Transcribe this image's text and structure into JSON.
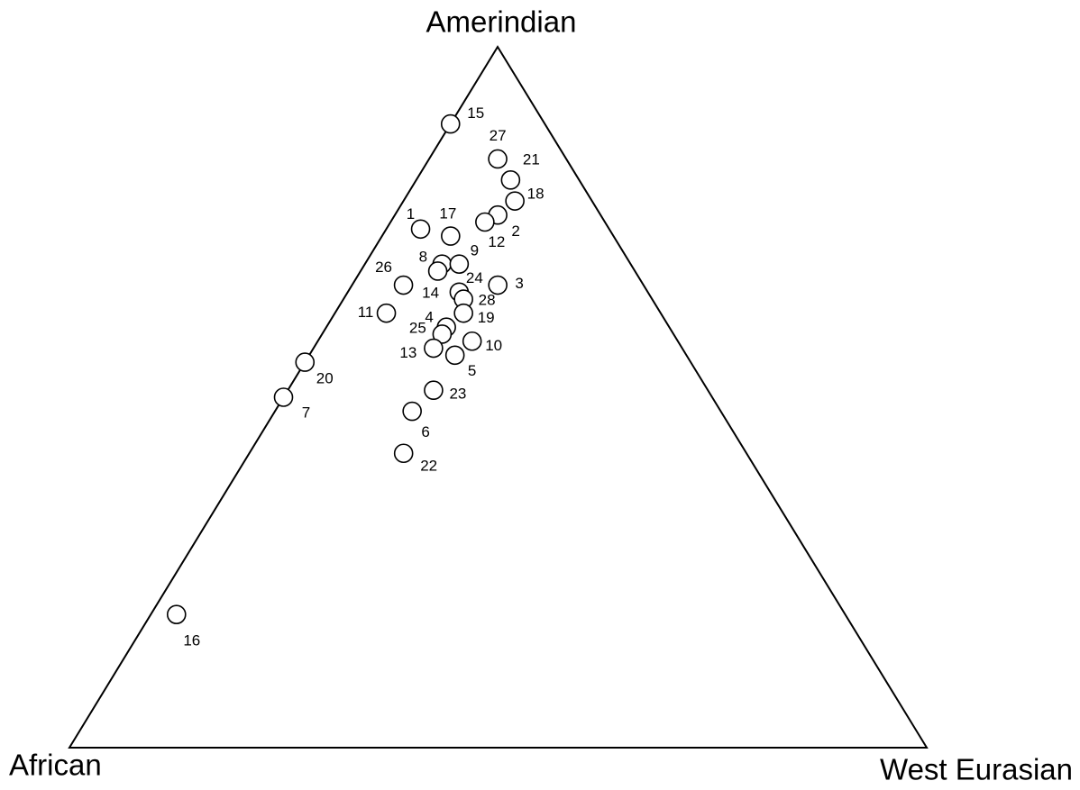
{
  "chart_data": {
    "type": "ternary",
    "corner_labels": {
      "top": "Amerindian",
      "left": "African",
      "right": "West Eurasian"
    },
    "labels": [
      "15",
      "27",
      "21",
      "18",
      "2",
      "12",
      "1",
      "17",
      "8",
      "9",
      "14",
      "24",
      "3",
      "26",
      "28",
      "11",
      "19",
      "4",
      "25",
      "10",
      "13",
      "5",
      "20",
      "23",
      "7",
      "6",
      "22",
      "16"
    ],
    "amerindian": [
      89,
      84,
      81,
      78,
      76,
      75,
      74,
      73,
      69,
      69,
      68,
      65,
      66,
      66,
      64,
      62,
      62,
      60,
      59,
      58,
      57,
      56,
      55,
      51,
      50,
      48,
      42,
      19
    ],
    "west_eurasian": [
      0,
      8,
      11,
      13,
      12,
      11,
      4,
      8,
      9,
      11,
      9,
      13,
      17,
      6,
      14,
      6,
      15,
      14,
      14,
      18,
      14,
      17,
      0,
      17,
      0,
      16,
      18,
      3
    ],
    "african": [
      11,
      8,
      8,
      9,
      12,
      14,
      22,
      19,
      22,
      20,
      23,
      22,
      17,
      28,
      22,
      32,
      23,
      26,
      27,
      24,
      29,
      27,
      45,
      32,
      50,
      36,
      40,
      78
    ],
    "marker_color": "#ffffff"
  }
}
